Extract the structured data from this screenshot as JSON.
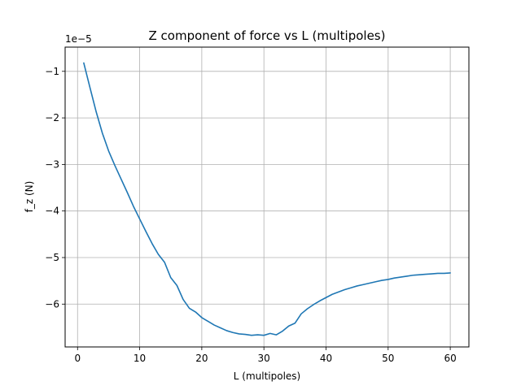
{
  "chart_data": {
    "type": "line",
    "title": "Z component of force vs L (multipoles)",
    "xlabel": "L (multipoles)",
    "ylabel": "f_z (N)",
    "y_offset_label": "1e−5",
    "xlim": [
      -2,
      63
    ],
    "ylim": [
      -6.92,
      -0.48
    ],
    "x_ticks": [
      0,
      10,
      20,
      30,
      40,
      50,
      60
    ],
    "x_tick_labels": [
      "0",
      "10",
      "20",
      "30",
      "40",
      "50",
      "60"
    ],
    "y_ticks": [
      -1,
      -2,
      -3,
      -4,
      -5,
      -6
    ],
    "y_tick_labels": [
      "−1",
      "−2",
      "−3",
      "−4",
      "−5",
      "−6"
    ],
    "grid": true,
    "series": [
      {
        "color": "#1f77b4",
        "x": [
          1,
          2,
          3,
          4,
          5,
          6,
          7,
          8,
          9,
          10,
          11,
          12,
          13,
          14,
          15,
          16,
          17,
          18,
          19,
          20,
          21,
          22,
          23,
          24,
          25,
          26,
          27,
          28,
          29,
          30,
          31,
          32,
          33,
          34,
          35,
          36,
          37,
          38,
          39,
          40,
          41,
          42,
          43,
          44,
          45,
          46,
          47,
          48,
          49,
          50,
          51,
          52,
          53,
          54,
          55,
          56,
          57,
          58,
          59,
          60
        ],
        "y": [
          -0.82,
          -1.35,
          -1.87,
          -2.33,
          -2.71,
          -3.02,
          -3.31,
          -3.6,
          -3.9,
          -4.17,
          -4.44,
          -4.7,
          -4.93,
          -5.1,
          -5.43,
          -5.6,
          -5.9,
          -6.09,
          -6.17,
          -6.29,
          -6.37,
          -6.45,
          -6.51,
          -6.57,
          -6.61,
          -6.64,
          -6.65,
          -6.67,
          -6.66,
          -6.67,
          -6.63,
          -6.66,
          -6.58,
          -6.47,
          -6.41,
          -6.21,
          -6.1,
          -6.01,
          -5.93,
          -5.86,
          -5.79,
          -5.74,
          -5.69,
          -5.65,
          -5.61,
          -5.58,
          -5.55,
          -5.52,
          -5.49,
          -5.47,
          -5.44,
          -5.42,
          -5.4,
          -5.38,
          -5.37,
          -5.36,
          -5.35,
          -5.34,
          -5.34,
          -5.33
        ]
      }
    ]
  }
}
